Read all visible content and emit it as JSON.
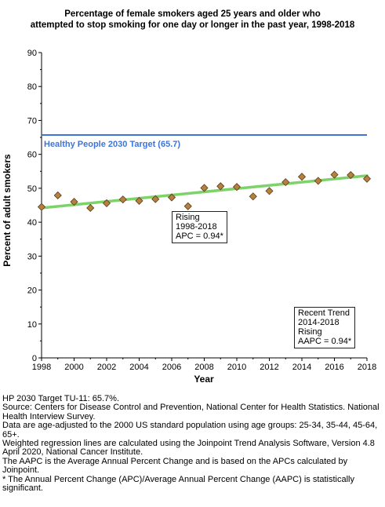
{
  "chart_data": {
    "type": "scatter",
    "title_lines": [
      "Percentage of female smokers aged 25 years and older who",
      "attempted to stop smoking for one day or longer in the past year, 1998-2018"
    ],
    "xlabel": "Year",
    "ylabel": "Percent of adult smokers",
    "xlim": [
      1998,
      2018
    ],
    "ylim": [
      0,
      90
    ],
    "x_ticks": [
      "1998",
      "2000",
      "2002",
      "2004",
      "2006",
      "2008",
      "2010",
      "2012",
      "2014",
      "2016",
      "2018"
    ],
    "y_ticks": [
      "0",
      "10",
      "20",
      "30",
      "40",
      "50",
      "60",
      "70",
      "80",
      "90"
    ],
    "grid": false,
    "x": [
      1998,
      1999,
      2000,
      2001,
      2002,
      2003,
      2004,
      2005,
      2006,
      2007,
      2008,
      2009,
      2010,
      2011,
      2012,
      2013,
      2014,
      2015,
      2016,
      2017,
      2018
    ],
    "values": [
      44.5,
      47.9,
      46.0,
      44.2,
      45.6,
      46.7,
      46.3,
      46.8,
      47.3,
      44.7,
      50.1,
      50.6,
      50.4,
      47.6,
      49.2,
      51.8,
      53.4,
      52.2,
      54.0,
      53.9,
      52.8
    ],
    "marker_color": "#b5813f",
    "trend_line": {
      "x": [
        1998,
        2018
      ],
      "y": [
        44.2,
        53.7
      ],
      "color": "#7dd36a"
    },
    "target": {
      "value": 65.7,
      "label": "Healthy People 2030 Target (65.7)",
      "color": "#3f74d6"
    },
    "annotations": {
      "segment": [
        "Rising",
        "1998-2018",
        "APC =  0.94*"
      ],
      "recent": [
        "Recent Trend",
        "2014-2018",
        "Rising",
        "AAPC =  0.94*"
      ]
    }
  },
  "footnotes": [
    "HP 2030 Target TU-11: 65.7%.",
    "Source: Centers for Disease Control and Prevention, National Center for Health Statistics. National Health Interview Survey.",
    "Data are age-adjusted to the 2000 US standard population using age groups: 25-34, 35-44, 45-64, 65+.",
    "Weighted regression lines are calculated using the Joinpoint Trend Analysis Software, Version 4.8 April 2020, National Cancer Institute.",
    "The AAPC is the Average Annual Percent Change and is based on the APCs calculated by Joinpoint.",
    "* The Annual Percent Change (APC)/Average Annual Percent Change (AAPC) is statistically significant."
  ]
}
